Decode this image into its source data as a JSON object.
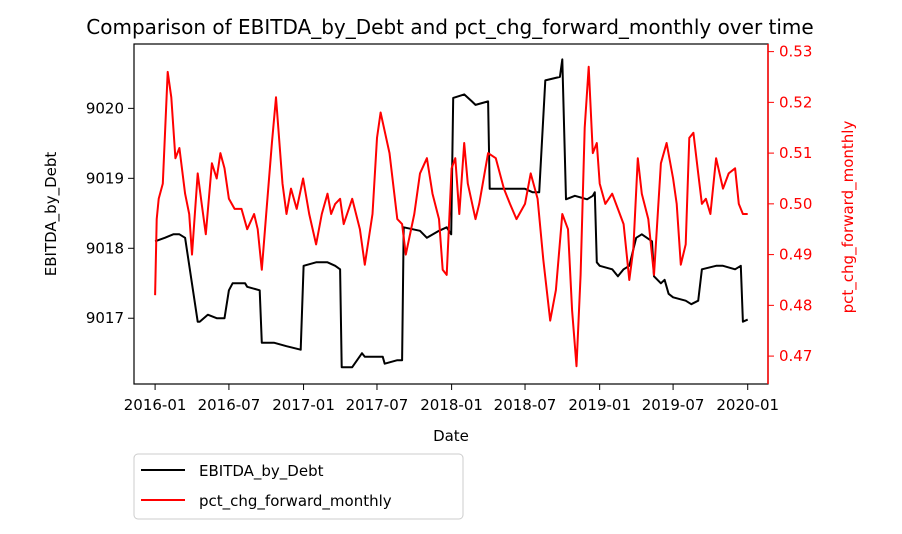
{
  "chart_data": {
    "type": "line",
    "title": "Comparison of EBITDA_by_Debt and pct_chg_forward_monthly over time",
    "xlabel": "Date",
    "ylabel_left": "EBITDA_by_Debt",
    "ylabel_right": "pct_chg_forward_monthly",
    "x_ticks": [
      "2016-01",
      "2016-07",
      "2017-01",
      "2017-07",
      "2018-01",
      "2018-07",
      "2019-01",
      "2019-07",
      "2020-01"
    ],
    "y_left_ticks": [
      9017,
      9018,
      9019,
      9020
    ],
    "y_right_ticks": [
      0.47,
      0.48,
      0.49,
      0.5,
      0.51,
      0.52,
      0.53
    ],
    "x_range": [
      "2015-11-10",
      "2020-02-20"
    ],
    "y_left_range": [
      9016.06,
      9020.92
    ],
    "y_right_range": [
      0.4645,
      0.5315
    ],
    "grid": false,
    "legend_position": "bottom-left, outside",
    "colors": {
      "left_series": "#000000",
      "right_series": "#ff0000",
      "right_axis": "#ff0000"
    },
    "series": [
      {
        "name": "EBITDA_by_Debt",
        "axis": "left",
        "color": "#000000",
        "x": [
          "2016-01-01",
          "2016-01-25",
          "2016-02-15",
          "2016-03-01",
          "2016-03-15",
          "2016-04-15",
          "2016-04-20",
          "2016-05-10",
          "2016-06-01",
          "2016-06-20",
          "2016-07-01",
          "2016-07-10",
          "2016-08-10",
          "2016-08-15",
          "2016-09-15",
          "2016-09-20",
          "2016-10-20",
          "2016-11-20",
          "2016-12-25",
          "2017-01-01",
          "2017-02-01",
          "2017-03-01",
          "2017-03-20",
          "2017-04-01",
          "2017-04-05",
          "2017-05-01",
          "2017-05-25",
          "2017-06-01",
          "2017-07-15",
          "2017-07-20",
          "2017-08-20",
          "2017-09-01",
          "2017-09-05",
          "2017-10-15",
          "2017-11-01",
          "2017-12-01",
          "2017-12-20",
          "2017-12-31",
          "2018-01-05",
          "2018-02-01",
          "2018-02-20",
          "2018-03-01",
          "2018-04-01",
          "2018-04-05",
          "2018-05-01",
          "2018-06-01",
          "2018-07-01",
          "2018-07-20",
          "2018-08-05",
          "2018-08-20",
          "2018-09-25",
          "2018-10-01",
          "2018-10-10",
          "2018-11-01",
          "2018-12-01",
          "2018-12-15",
          "2018-12-20",
          "2018-12-25",
          "2019-01-01",
          "2019-02-01",
          "2019-02-15",
          "2019-03-01",
          "2019-03-15",
          "2019-04-01",
          "2019-04-15",
          "2019-05-10",
          "2019-05-15",
          "2019-06-01",
          "2019-06-10",
          "2019-06-20",
          "2019-07-01",
          "2019-08-01",
          "2019-08-15",
          "2019-09-01",
          "2019-09-10",
          "2019-10-15",
          "2019-11-01",
          "2019-12-01",
          "2019-12-15",
          "2019-12-20",
          "2020-01-01"
        ],
        "values": [
          9018.1,
          9018.15,
          9018.2,
          9018.2,
          9018.15,
          9016.95,
          9016.95,
          9017.05,
          9017.0,
          9017.0,
          9017.4,
          9017.5,
          9017.5,
          9017.45,
          9017.4,
          9016.65,
          9016.65,
          9016.6,
          9016.55,
          9017.75,
          9017.8,
          9017.8,
          9017.75,
          9017.7,
          9016.3,
          9016.3,
          9016.5,
          9016.45,
          9016.45,
          9016.35,
          9016.4,
          9016.4,
          9018.3,
          9018.25,
          9018.15,
          9018.25,
          9018.3,
          9018.2,
          9020.15,
          9020.2,
          9020.1,
          9020.05,
          9020.1,
          9018.85,
          9018.85,
          9018.85,
          9018.85,
          9018.8,
          9018.8,
          9020.4,
          9020.45,
          9020.7,
          9018.7,
          9018.75,
          9018.7,
          9018.75,
          9018.8,
          9017.8,
          9017.75,
          9017.7,
          9017.6,
          9017.7,
          9017.75,
          9018.15,
          9018.2,
          9018.1,
          9017.6,
          9017.5,
          9017.55,
          9017.35,
          9017.3,
          9017.25,
          9017.2,
          9017.25,
          9017.7,
          9017.75,
          9017.75,
          9017.7,
          9017.75,
          9016.95,
          9016.98
        ]
      },
      {
        "name": "pct_chg_forward_monthly",
        "axis": "right",
        "color": "#ff0000",
        "x": [
          "2016-01-01",
          "2016-01-05",
          "2016-01-10",
          "2016-01-20",
          "2016-02-01",
          "2016-02-10",
          "2016-02-20",
          "2016-03-01",
          "2016-03-15",
          "2016-03-25",
          "2016-04-01",
          "2016-04-15",
          "2016-04-25",
          "2016-05-05",
          "2016-05-20",
          "2016-06-01",
          "2016-06-10",
          "2016-06-20",
          "2016-07-01",
          "2016-07-15",
          "2016-08-01",
          "2016-08-15",
          "2016-09-01",
          "2016-09-10",
          "2016-09-20",
          "2016-10-01",
          "2016-10-15",
          "2016-10-25",
          "2016-11-10",
          "2016-11-20",
          "2016-12-01",
          "2016-12-15",
          "2016-12-31",
          "2017-01-15",
          "2017-02-01",
          "2017-02-15",
          "2017-03-01",
          "2017-03-10",
          "2017-03-20",
          "2017-04-01",
          "2017-04-10",
          "2017-05-01",
          "2017-05-20",
          "2017-06-01",
          "2017-06-20",
          "2017-07-01",
          "2017-07-10",
          "2017-08-01",
          "2017-08-20",
          "2017-09-01",
          "2017-09-10",
          "2017-10-01",
          "2017-10-15",
          "2017-11-01",
          "2017-11-15",
          "2017-12-01",
          "2017-12-10",
          "2017-12-20",
          "2018-01-01",
          "2018-01-10",
          "2018-01-20",
          "2018-02-01",
          "2018-02-10",
          "2018-03-01",
          "2018-03-10",
          "2018-04-01",
          "2018-04-20",
          "2018-05-10",
          "2018-05-25",
          "2018-06-10",
          "2018-07-01",
          "2018-07-15",
          "2018-08-01",
          "2018-08-15",
          "2018-09-01",
          "2018-09-15",
          "2018-10-01",
          "2018-10-15",
          "2018-10-25",
          "2018-11-05",
          "2018-11-15",
          "2018-11-25",
          "2018-12-05",
          "2018-12-15",
          "2018-12-25",
          "2019-01-01",
          "2019-01-15",
          "2019-02-01",
          "2019-02-15",
          "2019-03-01",
          "2019-03-15",
          "2019-03-25",
          "2019-04-05",
          "2019-04-15",
          "2019-05-01",
          "2019-05-15",
          "2019-06-01",
          "2019-06-15",
          "2019-07-01",
          "2019-07-10",
          "2019-07-20",
          "2019-08-01",
          "2019-08-10",
          "2019-08-20",
          "2019-09-01",
          "2019-09-10",
          "2019-09-20",
          "2019-10-01",
          "2019-10-15",
          "2019-11-01",
          "2019-11-15",
          "2019-12-01",
          "2019-12-10",
          "2019-12-20",
          "2020-01-01"
        ],
        "values": [
          0.482,
          0.497,
          0.501,
          0.504,
          0.526,
          0.521,
          0.509,
          0.511,
          0.502,
          0.498,
          0.49,
          0.506,
          0.5,
          0.494,
          0.508,
          0.505,
          0.51,
          0.507,
          0.501,
          0.499,
          0.499,
          0.495,
          0.498,
          0.495,
          0.487,
          0.498,
          0.512,
          0.521,
          0.504,
          0.498,
          0.503,
          0.499,
          0.505,
          0.498,
          0.492,
          0.498,
          0.502,
          0.498,
          0.5,
          0.501,
          0.496,
          0.501,
          0.495,
          0.488,
          0.498,
          0.513,
          0.518,
          0.51,
          0.497,
          0.496,
          0.49,
          0.498,
          0.506,
          0.509,
          0.502,
          0.497,
          0.487,
          0.486,
          0.507,
          0.509,
          0.498,
          0.512,
          0.504,
          0.497,
          0.5,
          0.51,
          0.509,
          0.503,
          0.5,
          0.497,
          0.5,
          0.506,
          0.501,
          0.489,
          0.477,
          0.483,
          0.498,
          0.495,
          0.479,
          0.468,
          0.486,
          0.515,
          0.527,
          0.51,
          0.512,
          0.504,
          0.5,
          0.502,
          0.499,
          0.496,
          0.485,
          0.491,
          0.509,
          0.502,
          0.497,
          0.486,
          0.508,
          0.512,
          0.505,
          0.5,
          0.488,
          0.492,
          0.513,
          0.514,
          0.506,
          0.5,
          0.501,
          0.498,
          0.509,
          0.503,
          0.506,
          0.507,
          0.5,
          0.498,
          0.498
        ]
      }
    ]
  }
}
